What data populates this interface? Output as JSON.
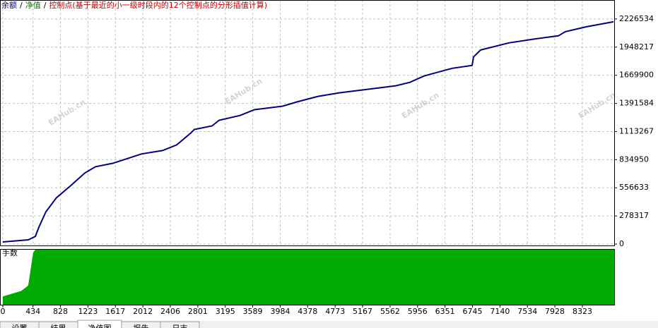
{
  "legend": [
    {
      "name": "余额",
      "color": "#000080"
    },
    {
      "name": "净值",
      "color": "#008000"
    },
    {
      "name": "控制点(基于最近的小一级时段内的12个控制点的分形插值计算)",
      "color": "#c00000"
    }
  ],
  "legend_separator": "/",
  "watermark": "EAHub.cn",
  "tabs": [
    "设置",
    "结果",
    "净值图",
    "报告",
    "日志"
  ],
  "chart_data": [
    {
      "type": "line",
      "x": [
        0,
        366,
        467,
        518,
        620,
        772,
        975,
        1178,
        1330,
        1584,
        1990,
        2294,
        2497,
        2700,
        2751,
        3005,
        3106,
        3411,
        3614,
        4020,
        4223,
        4527,
        4832,
        5238,
        5644,
        5847,
        6050,
        6456,
        6740,
        6760,
        6861,
        7267,
        7673,
        7978,
        8079,
        8384,
        8770
      ],
      "series": [
        {
          "color": "#000080",
          "values": [
            21000,
            42000,
            76000,
            167000,
            320000,
            459000,
            578000,
            703000,
            765000,
            800000,
            891000,
            925000,
            981000,
            1099000,
            1134000,
            1169000,
            1225000,
            1273000,
            1329000,
            1364000,
            1406000,
            1461000,
            1496000,
            1531000,
            1566000,
            1600000,
            1663000,
            1739000,
            1767000,
            1851000,
            1920000,
            1990000,
            2032000,
            2060000,
            2101000,
            2150000,
            2199000
          ]
        }
      ],
      "xlim": [
        -40,
        8780
      ],
      "ylim": [
        -13916,
        2414398
      ],
      "xticks": [
        0,
        434,
        828,
        1223,
        1617,
        2012,
        2406,
        2801,
        3195,
        3589,
        3984,
        4378,
        4773,
        5167,
        5562,
        5956,
        6351,
        6745,
        7140,
        7534,
        7928,
        8323
      ],
      "yticks": [
        0,
        278317,
        556633,
        834950,
        1113267,
        1391584,
        1669900,
        1948217,
        2226534
      ],
      "grid": true
    },
    {
      "type": "area",
      "title": "手数",
      "x": [
        0,
        264,
        365,
        437,
        467,
        8780
      ],
      "series": [
        {
          "color": "#00aa00",
          "values": [
            0.15,
            0.25,
            0.35,
            0.95,
            1,
            1
          ]
        }
      ],
      "ylim": [
        0,
        1
      ]
    }
  ]
}
